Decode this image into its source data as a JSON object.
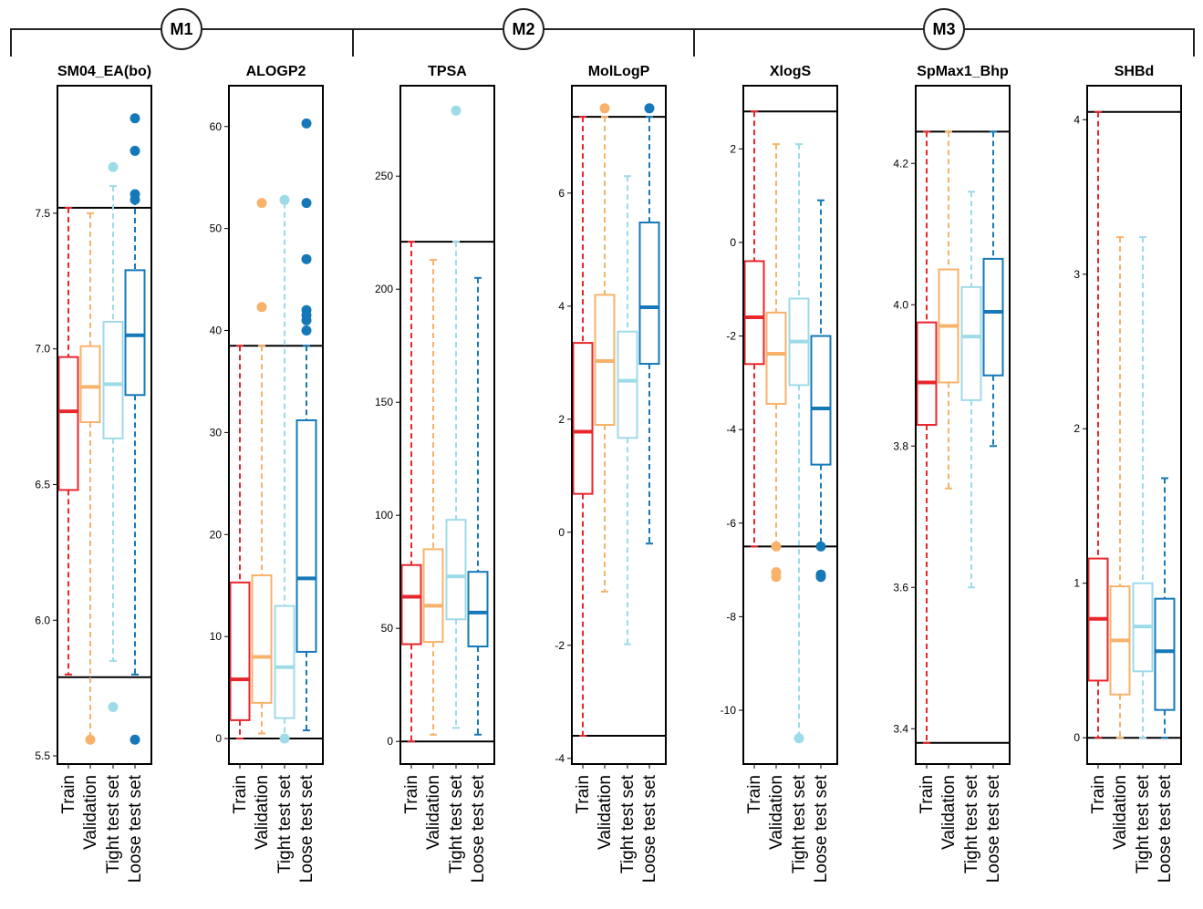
{
  "groups": [
    {
      "label": "M1",
      "panels": [
        0,
        1
      ]
    },
    {
      "label": "M2",
      "panels": [
        2,
        3
      ]
    },
    {
      "label": "M3",
      "panels": [
        4,
        5,
        6
      ]
    }
  ],
  "categories": [
    "Train",
    "Validation",
    "Tight test set",
    "Loose test set"
  ],
  "colors": {
    "Train": "#e8262b",
    "Validation": "#f8b26a",
    "Tight test set": "#9edbe8",
    "Loose test set": "#1578b8"
  },
  "chart_data": [
    {
      "type": "box",
      "title": "SM04_EA(bo)",
      "ylim": [
        5.47,
        7.97
      ],
      "yticks": [
        {
          "v": 5.5,
          "label": "5.5"
        },
        {
          "v": 6.0,
          "label": "6.0"
        },
        {
          "v": 6.5,
          "label": "6.5"
        },
        {
          "v": 7.0,
          "label": "7.0"
        },
        {
          "v": 7.5,
          "label": "7.5"
        }
      ],
      "hlines": [
        7.52,
        5.79
      ],
      "boxes": [
        {
          "category": "Train",
          "whisker_low": 5.8,
          "q1": 6.48,
          "median": 6.77,
          "q3": 6.97,
          "whisker_high": 7.52,
          "outliers": []
        },
        {
          "category": "Validation",
          "whisker_low": 5.56,
          "q1": 6.73,
          "median": 6.86,
          "q3": 7.01,
          "whisker_high": 7.5,
          "outliers": [
            5.56
          ]
        },
        {
          "category": "Tight test set",
          "whisker_low": 5.85,
          "q1": 6.67,
          "median": 6.87,
          "q3": 7.1,
          "whisker_high": 7.6,
          "outliers": [
            7.67,
            5.68
          ]
        },
        {
          "category": "Loose test set",
          "whisker_low": 5.8,
          "q1": 6.83,
          "median": 7.05,
          "q3": 7.29,
          "whisker_high": 7.55,
          "outliers": [
            7.85,
            7.73,
            7.57,
            7.55,
            5.56
          ]
        }
      ]
    },
    {
      "type": "box",
      "title": "ALOGP2",
      "ylim": [
        -2.5,
        64
      ],
      "yticks": [
        {
          "v": 0,
          "label": "0"
        },
        {
          "v": 10,
          "label": "10"
        },
        {
          "v": 20,
          "label": "20"
        },
        {
          "v": 30,
          "label": "30"
        },
        {
          "v": 40,
          "label": "40"
        },
        {
          "v": 50,
          "label": "50"
        },
        {
          "v": 60,
          "label": "60"
        }
      ],
      "hlines": [
        38.5,
        0
      ],
      "boxes": [
        {
          "category": "Train",
          "whisker_low": 0,
          "q1": 1.8,
          "median": 5.8,
          "q3": 15.3,
          "whisker_high": 38.5,
          "outliers": []
        },
        {
          "category": "Validation",
          "whisker_low": 0.5,
          "q1": 3.5,
          "median": 8.0,
          "q3": 16.0,
          "whisker_high": 38.5,
          "outliers": [
            52.5,
            42.3
          ]
        },
        {
          "category": "Tight test set",
          "whisker_low": 0,
          "q1": 2.0,
          "median": 7.0,
          "q3": 13.0,
          "whisker_high": 52.5,
          "outliers": [
            52.8,
            0
          ]
        },
        {
          "category": "Loose test set",
          "whisker_low": 0.8,
          "q1": 8.5,
          "median": 15.7,
          "q3": 31.2,
          "whisker_high": 38.5,
          "outliers": [
            60.3,
            52.5,
            47.0,
            42.0,
            41.5,
            40.0,
            41.0
          ]
        }
      ]
    },
    {
      "type": "box",
      "title": "TPSA",
      "ylim": [
        -10,
        290
      ],
      "yticks": [
        {
          "v": 0,
          "label": "0"
        },
        {
          "v": 50,
          "label": "50"
        },
        {
          "v": 100,
          "label": "100"
        },
        {
          "v": 150,
          "label": "150"
        },
        {
          "v": 200,
          "label": "200"
        },
        {
          "v": 250,
          "label": "250"
        }
      ],
      "hlines": [
        221,
        0
      ],
      "boxes": [
        {
          "category": "Train",
          "whisker_low": 0,
          "q1": 43,
          "median": 64,
          "q3": 78,
          "whisker_high": 221,
          "outliers": []
        },
        {
          "category": "Validation",
          "whisker_low": 3,
          "q1": 44,
          "median": 60,
          "q3": 85,
          "whisker_high": 213,
          "outliers": []
        },
        {
          "category": "Tight test set",
          "whisker_low": 6,
          "q1": 54,
          "median": 73,
          "q3": 98,
          "whisker_high": 221,
          "outliers": [
            279
          ]
        },
        {
          "category": "Loose test set",
          "whisker_low": 3,
          "q1": 42,
          "median": 57,
          "q3": 75,
          "whisker_high": 205,
          "outliers": []
        }
      ]
    },
    {
      "type": "box",
      "title": "MolLogP",
      "ylim": [
        -4.1,
        7.9
      ],
      "yticks": [
        {
          "v": -4,
          "label": "-4"
        },
        {
          "v": -2,
          "label": "-2"
        },
        {
          "v": 0,
          "label": "0"
        },
        {
          "v": 2,
          "label": "2"
        },
        {
          "v": 4,
          "label": "4"
        },
        {
          "v": 6,
          "label": "6"
        }
      ],
      "hlines": [
        7.35,
        -3.6
      ],
      "boxes": [
        {
          "category": "Train",
          "whisker_low": -3.6,
          "q1": 0.68,
          "median": 1.78,
          "q3": 3.35,
          "whisker_high": 7.35,
          "outliers": []
        },
        {
          "category": "Validation",
          "whisker_low": -1.05,
          "q1": 1.9,
          "median": 3.03,
          "q3": 4.2,
          "whisker_high": 7.35,
          "outliers": [
            7.5
          ]
        },
        {
          "category": "Tight test set",
          "whisker_low": -1.98,
          "q1": 1.67,
          "median": 2.68,
          "q3": 3.55,
          "whisker_high": 6.3,
          "outliers": []
        },
        {
          "category": "Loose test set",
          "whisker_low": -0.2,
          "q1": 2.98,
          "median": 3.98,
          "q3": 5.48,
          "whisker_high": 7.35,
          "outliers": [
            7.5
          ]
        }
      ]
    },
    {
      "type": "box",
      "title": "XlogS",
      "ylim": [
        -11.15,
        3.35
      ],
      "yticks": [
        {
          "v": -10,
          "label": "-10"
        },
        {
          "v": -8,
          "label": "-8"
        },
        {
          "v": -6,
          "label": "-6"
        },
        {
          "v": -4,
          "label": "-4"
        },
        {
          "v": -2,
          "label": "-2"
        },
        {
          "v": 0,
          "label": "0"
        },
        {
          "v": 2,
          "label": "2"
        }
      ],
      "hlines": [
        2.8,
        -6.5
      ],
      "boxes": [
        {
          "category": "Train",
          "whisker_low": -6.5,
          "q1": -2.6,
          "median": -1.6,
          "q3": -0.4,
          "whisker_high": 2.8,
          "outliers": []
        },
        {
          "category": "Validation",
          "whisker_low": -6.5,
          "q1": -3.45,
          "median": -2.38,
          "q3": -1.5,
          "whisker_high": 2.1,
          "outliers": [
            -6.5,
            -7.05,
            -7.15
          ]
        },
        {
          "category": "Tight test set",
          "whisker_low": -10.6,
          "q1": -3.05,
          "median": -2.12,
          "q3": -1.2,
          "whisker_high": 2.1,
          "outliers": [
            -10.6
          ]
        },
        {
          "category": "Loose test set",
          "whisker_low": -6.5,
          "q1": -4.75,
          "median": -3.55,
          "q3": -2.0,
          "whisker_high": 0.9,
          "outliers": [
            -6.5,
            -7.1,
            -7.15
          ]
        }
      ]
    },
    {
      "type": "box",
      "title": "SpMax1_Bhp",
      "ylim": [
        3.35,
        4.31
      ],
      "yticks": [
        {
          "v": 3.4,
          "label": "3.4"
        },
        {
          "v": 3.6,
          "label": "3.6"
        },
        {
          "v": 3.8,
          "label": "3.8"
        },
        {
          "v": 4.0,
          "label": "4.0"
        },
        {
          "v": 4.2,
          "label": "4.2"
        }
      ],
      "hlines": [
        4.245,
        3.38
      ],
      "boxes": [
        {
          "category": "Train",
          "whisker_low": 3.38,
          "q1": 3.83,
          "median": 3.89,
          "q3": 3.975,
          "whisker_high": 4.245,
          "outliers": []
        },
        {
          "category": "Validation",
          "whisker_low": 3.74,
          "q1": 3.89,
          "median": 3.97,
          "q3": 4.05,
          "whisker_high": 4.245,
          "outliers": []
        },
        {
          "category": "Tight test set",
          "whisker_low": 3.6,
          "q1": 3.865,
          "median": 3.955,
          "q3": 4.025,
          "whisker_high": 4.16,
          "outliers": []
        },
        {
          "category": "Loose test set",
          "whisker_low": 3.8,
          "q1": 3.9,
          "median": 3.99,
          "q3": 4.065,
          "whisker_high": 4.245,
          "outliers": []
        }
      ]
    },
    {
      "type": "box",
      "title": "SHBd",
      "ylim": [
        -0.17,
        4.22
      ],
      "yticks": [
        {
          "v": 0,
          "label": "0"
        },
        {
          "v": 1,
          "label": "1"
        },
        {
          "v": 2,
          "label": "2"
        },
        {
          "v": 3,
          "label": "3"
        },
        {
          "v": 4,
          "label": "4"
        }
      ],
      "hlines": [
        4.05,
        0
      ],
      "boxes": [
        {
          "category": "Train",
          "whisker_low": 0,
          "q1": 0.37,
          "median": 0.77,
          "q3": 1.16,
          "whisker_high": 4.05,
          "outliers": []
        },
        {
          "category": "Validation",
          "whisker_low": 0,
          "q1": 0.28,
          "median": 0.63,
          "q3": 0.98,
          "whisker_high": 3.24,
          "outliers": []
        },
        {
          "category": "Tight test set",
          "whisker_low": 0,
          "q1": 0.43,
          "median": 0.72,
          "q3": 1.0,
          "whisker_high": 3.24,
          "outliers": []
        },
        {
          "category": "Loose test set",
          "whisker_low": 0,
          "q1": 0.18,
          "median": 0.56,
          "q3": 0.9,
          "whisker_high": 1.68,
          "outliers": []
        }
      ]
    }
  ]
}
